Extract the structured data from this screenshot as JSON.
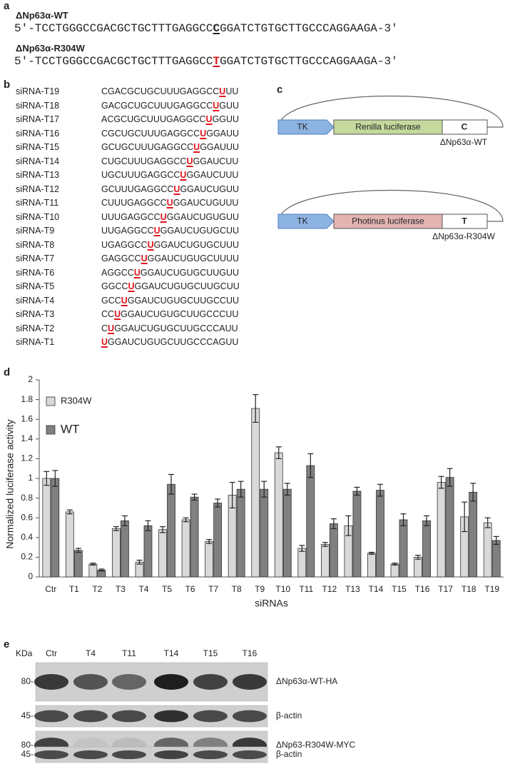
{
  "panel_a": {
    "label": "a",
    "sequences": [
      {
        "name": "ΔNp63α-WT",
        "prefix": "5′-TCCTGGGCCGACGCTGCTTTGAGGCC",
        "site": "C",
        "suffix": "GGATCTGTGCTTGCCCAGGAAGA-3′"
      },
      {
        "name": "ΔNp63α-R304W",
        "prefix": "5′-TCCTGGGCCGACGCTGCTTTGAGGCC",
        "site": "T",
        "suffix": "GGATCTGTGCTTGCCCAGGAAGA-3′"
      }
    ]
  },
  "panel_b": {
    "label": "b",
    "sirnas": [
      {
        "name": "siRNA-T19",
        "prefix": "CGACGCUGCUUUGAGGCC",
        "site": "U",
        "suffix": "UU"
      },
      {
        "name": "siRNA-T18",
        "prefix": "GACGCUGCUUUGAGGCC",
        "site": "U",
        "suffix": "GUU"
      },
      {
        "name": "siRNA-T17",
        "prefix": "ACGCUGCUUUGAGGCC",
        "site": "U",
        "suffix": "GGUU"
      },
      {
        "name": "siRNA-T16",
        "prefix": "CGCUGCUUUGAGGCC",
        "site": "U",
        "suffix": "GGAUU"
      },
      {
        "name": "siRNA-T15",
        "prefix": "GCUGCUUUGAGGCC",
        "site": "U",
        "suffix": "GGAUUU"
      },
      {
        "name": "siRNA-T14",
        "prefix": "CUGCUUUGAGGCC",
        "site": "U",
        "suffix": "GGAUCUU"
      },
      {
        "name": "siRNA-T13",
        "prefix": "UGCUUUGAGGCC",
        "site": "U",
        "suffix": "GGAUCUUU"
      },
      {
        "name": "siRNA-T12",
        "prefix": "GCUUUGAGGCC",
        "site": "U",
        "suffix": "GGAUCUGUU"
      },
      {
        "name": "siRNA-T11",
        "prefix": "CUUUGAGGCC",
        "site": "U",
        "suffix": "GGAUCUGUUU"
      },
      {
        "name": "siRNA-T10",
        "prefix": "UUUGAGGCC",
        "site": "U",
        "suffix": "GGAUCUGUGUU"
      },
      {
        "name": "siRNA-T9",
        "prefix": "UUGAGGCC",
        "site": "U",
        "suffix": "GGAUCUGUGCUU"
      },
      {
        "name": "siRNA-T8",
        "prefix": "UGAGGCC",
        "site": "U",
        "suffix": "GGAUCUGUGCUUU"
      },
      {
        "name": "siRNA-T7",
        "prefix": "GAGGCC",
        "site": "U",
        "suffix": "GGAUCUGUGCUUUU"
      },
      {
        "name": "siRNA-T6",
        "prefix": "AGGCC",
        "site": "U",
        "suffix": "GGAUCUGUGCUUGUU"
      },
      {
        "name": "siRNA-T5",
        "prefix": "GGCC",
        "site": "U",
        "suffix": "GGAUCUGUGCUUGCUU"
      },
      {
        "name": "siRNA-T4",
        "prefix": "GCC",
        "site": "U",
        "suffix": "GGAUCUGUGCUUGCCUU"
      },
      {
        "name": "siRNA-T3",
        "prefix": "CC",
        "site": "U",
        "suffix": "GGAUCUGUGCUUGCCCUU"
      },
      {
        "name": "siRNA-T2",
        "prefix": "C",
        "site": "U",
        "suffix": "GGAUCUGUGCUUGCCCAUU"
      },
      {
        "name": "siRNA-T1",
        "prefix": "",
        "site": "U",
        "suffix": "GGAUCUGUGCUUGCCCAGUU"
      }
    ]
  },
  "panel_c": {
    "label": "c",
    "constructs": [
      {
        "promoter": "TK",
        "reporter": "Renilla luciferase",
        "site": "C",
        "name": "ΔNp63α-WT"
      },
      {
        "promoter": "TK",
        "reporter": "Photinus luciferase",
        "site": "T",
        "name": "ΔNp63α-R304W"
      }
    ]
  },
  "chart_data": {
    "type": "bar",
    "label": "d",
    "x_label": "siRNAs",
    "y_label": "Normalized luciferase activity",
    "categories": [
      "Ctr",
      "T1",
      "T2",
      "T3",
      "T4",
      "T5",
      "T6",
      "T7",
      "T8",
      "T9",
      "T10",
      "T11",
      "T12",
      "T13",
      "T14",
      "T15",
      "T16",
      "T17",
      "T18",
      "T19"
    ],
    "series": [
      {
        "name": "R304W",
        "color": "#d9d9d9",
        "values": [
          1.0,
          0.66,
          0.13,
          0.49,
          0.15,
          0.48,
          0.58,
          0.36,
          0.83,
          1.71,
          1.26,
          0.29,
          0.33,
          0.52,
          0.24,
          0.13,
          0.2,
          0.96,
          0.61,
          0.55
        ],
        "errors": [
          0.07,
          0.02,
          0.01,
          0.02,
          0.02,
          0.03,
          0.02,
          0.02,
          0.13,
          0.14,
          0.06,
          0.03,
          0.02,
          0.1,
          0.01,
          0.01,
          0.02,
          0.06,
          0.15,
          0.05
        ]
      },
      {
        "name": "WT",
        "color": "#808080",
        "values": [
          1.0,
          0.27,
          0.07,
          0.57,
          0.52,
          0.94,
          0.81,
          0.75,
          0.89,
          0.89,
          0.89,
          1.13,
          0.54,
          0.87,
          0.88,
          0.58,
          0.57,
          1.01,
          0.86,
          0.37
        ],
        "errors": [
          0.08,
          0.02,
          0.01,
          0.05,
          0.05,
          0.1,
          0.03,
          0.04,
          0.08,
          0.08,
          0.06,
          0.12,
          0.05,
          0.04,
          0.06,
          0.06,
          0.05,
          0.09,
          0.09,
          0.04
        ]
      }
    ],
    "ylim": [
      0,
      2
    ],
    "yticks": [
      0,
      0.2,
      0.4,
      0.6,
      0.8,
      1,
      1.2,
      1.4,
      1.6,
      1.8,
      2
    ],
    "grid": false,
    "legend": "upper-left"
  },
  "panel_e": {
    "label": "e",
    "unit": "KDa",
    "lanes": [
      "Ctr",
      "T4",
      "T11",
      "T14",
      "T15",
      "T16"
    ],
    "rows": [
      {
        "marker": "80-",
        "protein": "ΔNp63α-WT-HA"
      },
      {
        "marker": "45-",
        "protein": "β-actin"
      },
      {
        "marker": "80-",
        "protein": "ΔNp63-R304W-MYC"
      },
      {
        "marker": "45-",
        "protein": "β-actin"
      }
    ]
  }
}
